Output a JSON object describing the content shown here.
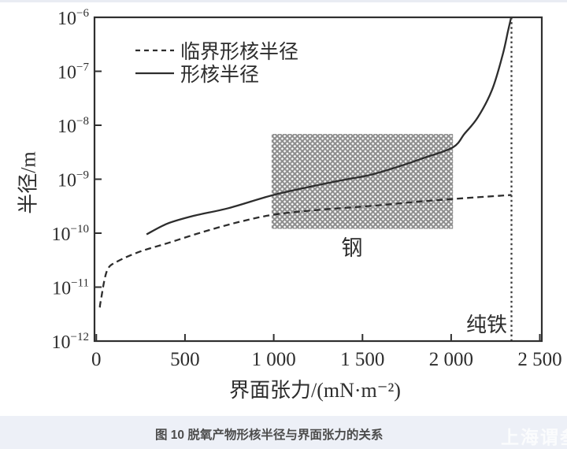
{
  "caption": {
    "text": "图 10 脱氧产物形核半径与界面张力的关系"
  },
  "watermark": {
    "text": "上海谓叁"
  },
  "colors": {
    "curve": "#2d2d2d",
    "plot_border": "#2f2f2f",
    "hatch": "#8e8e8e",
    "caption_bar_bg": "#edf0f7",
    "caption_text": "#4c4c4c"
  },
  "chart_data": {
    "type": "line",
    "title": "",
    "xlabel": "界面张力/(mN·m⁻²)",
    "ylabel": "半径/m",
    "x_axis": {
      "min": 0,
      "max": 2500,
      "ticks": [
        0,
        500,
        1000,
        1500,
        2000,
        2500
      ],
      "tick_labels": [
        "0",
        "500",
        "1 000",
        "1 500",
        "2 000",
        "2 500"
      ]
    },
    "y_axis": {
      "scale": "log",
      "min": 1e-12,
      "max": 1e-06,
      "tick_base": "10",
      "tick_exponents": [
        -6,
        -7,
        -8,
        -9,
        -10,
        -11,
        -12
      ]
    },
    "grid": "off",
    "legend": {
      "position": "top-left"
    },
    "series": [
      {
        "name": "临界形核半径",
        "style": "dashed",
        "color": "#2d2d2d",
        "points": [
          [
            20,
            4.2e-12
          ],
          [
            25,
            5.5e-12
          ],
          [
            60,
            2e-11
          ],
          [
            120,
            3e-11
          ],
          [
            250,
            4.6e-11
          ],
          [
            400,
            6.5e-11
          ],
          [
            600,
            1.05e-10
          ],
          [
            800,
            1.6e-10
          ],
          [
            1000,
            2.2e-10
          ],
          [
            1250,
            2.7e-10
          ],
          [
            1550,
            3.2e-10
          ],
          [
            1800,
            3.8e-10
          ],
          [
            2010,
            4.3e-10
          ],
          [
            2340,
            5.1e-10
          ]
        ]
      },
      {
        "name": "形核半径",
        "style": "solid",
        "color": "#2d2d2d",
        "points": [
          [
            283,
            9.5e-11
          ],
          [
            400,
            1.5e-10
          ],
          [
            550,
            2.1e-10
          ],
          [
            744,
            2.9e-10
          ],
          [
            988,
            5e-10
          ],
          [
            1200,
            7.2e-10
          ],
          [
            1400,
            9.8e-10
          ],
          [
            1543,
            1.2e-09
          ],
          [
            1700,
            1.7e-09
          ],
          [
            1850,
            2.5e-09
          ],
          [
            2010,
            3.9e-09
          ],
          [
            2076,
            7e-09
          ],
          [
            2150,
            1.4e-08
          ],
          [
            2230,
            4.5e-08
          ],
          [
            2290,
            2e-07
          ],
          [
            2320,
            5.5e-07
          ],
          [
            2338,
            1e-06
          ]
        ]
      }
    ],
    "annotations": {
      "steel_region": {
        "label": "钢",
        "x_range": [
          988,
          2010
        ],
        "y_range": [
          1.2e-10,
          6.9e-09
        ],
        "pattern": "crosshatch",
        "color": "#8e8e8e"
      },
      "pure_iron_line": {
        "label": "纯铁",
        "x": 2340,
        "style": "dotted"
      }
    }
  }
}
